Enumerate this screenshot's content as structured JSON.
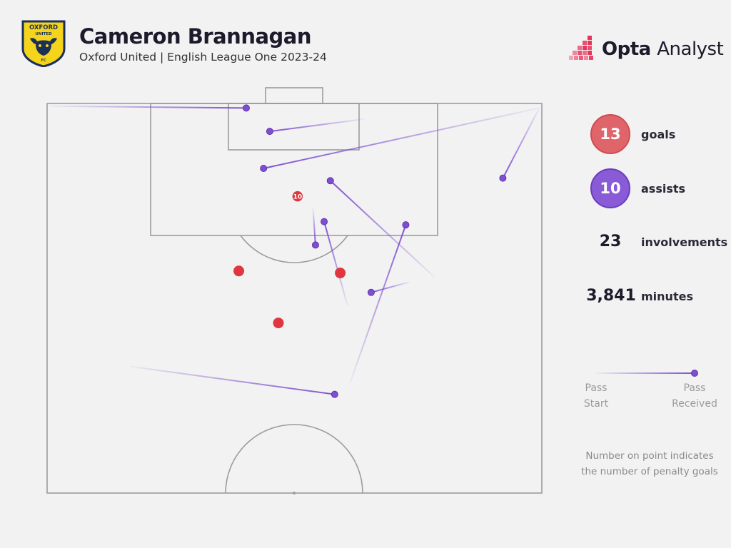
{
  "header": {
    "player_name": "Cameron Brannagan",
    "subtitle": "Oxford United | English League One 2023-24",
    "crest_text_top": "OXFORD",
    "crest_text_mid": "UNITED",
    "crest_text_bottom": "FC",
    "brand_bold": "Opta",
    "brand_light": "Analyst"
  },
  "stats": {
    "goals": {
      "value": "13",
      "label": "goals"
    },
    "assists": {
      "value": "10",
      "label": "assists"
    },
    "involvements": {
      "value": "23",
      "label": "involvements"
    },
    "minutes": {
      "value": "3,841",
      "label": "minutes"
    }
  },
  "legend": {
    "start_line1": "Pass",
    "start_line2": "Start",
    "received_line1": "Pass",
    "received_line2": "Received"
  },
  "footnote": {
    "line1": "Number on point indicates",
    "line2": "the number of penalty goals"
  },
  "colors": {
    "goal": "#e0363f",
    "assist": "#7e4fd0",
    "background": "#f2f2f2",
    "pitch_lines": "#9c9c9c"
  },
  "chart_data": {
    "type": "scatter",
    "description_units": "StatsBomb-style pitch units: x = width across (0-80), y = distance from goal line (0-60, half pitch)",
    "pitch": {
      "width": 80,
      "length": 60
    },
    "goals": [
      {
        "x": 40.5,
        "y": 14.3,
        "count": 10,
        "label": "10",
        "penalty": true
      },
      {
        "x": 31.0,
        "y": 25.8,
        "count": 1,
        "label": ""
      },
      {
        "x": 47.4,
        "y": 26.1,
        "count": 1,
        "label": ""
      },
      {
        "x": 37.4,
        "y": 33.8,
        "count": 1,
        "label": ""
      }
    ],
    "assists": [
      {
        "start": [
          0.3,
          0.4
        ],
        "end": [
          32.2,
          0.7
        ]
      },
      {
        "start": [
          51.3,
          2.4
        ],
        "end": [
          36.0,
          4.3
        ]
      },
      {
        "start": [
          79.6,
          0.7
        ],
        "end": [
          35.0,
          10.0
        ]
      },
      {
        "start": [
          79.6,
          0.7
        ],
        "end": [
          73.7,
          11.5
        ]
      },
      {
        "start": [
          62.7,
          26.8
        ],
        "end": [
          45.8,
          11.9
        ]
      },
      {
        "start": [
          43.0,
          16.1
        ],
        "end": [
          43.4,
          21.8
        ]
      },
      {
        "start": [
          48.6,
          31.2
        ],
        "end": [
          44.8,
          18.2
        ]
      },
      {
        "start": [
          58.6,
          27.5
        ],
        "end": [
          52.4,
          29.1
        ]
      },
      {
        "start": [
          49.0,
          43.0
        ],
        "end": [
          58.0,
          18.7
        ]
      },
      {
        "start": [
          13.4,
          40.5
        ],
        "end": [
          46.5,
          44.8
        ]
      }
    ]
  }
}
